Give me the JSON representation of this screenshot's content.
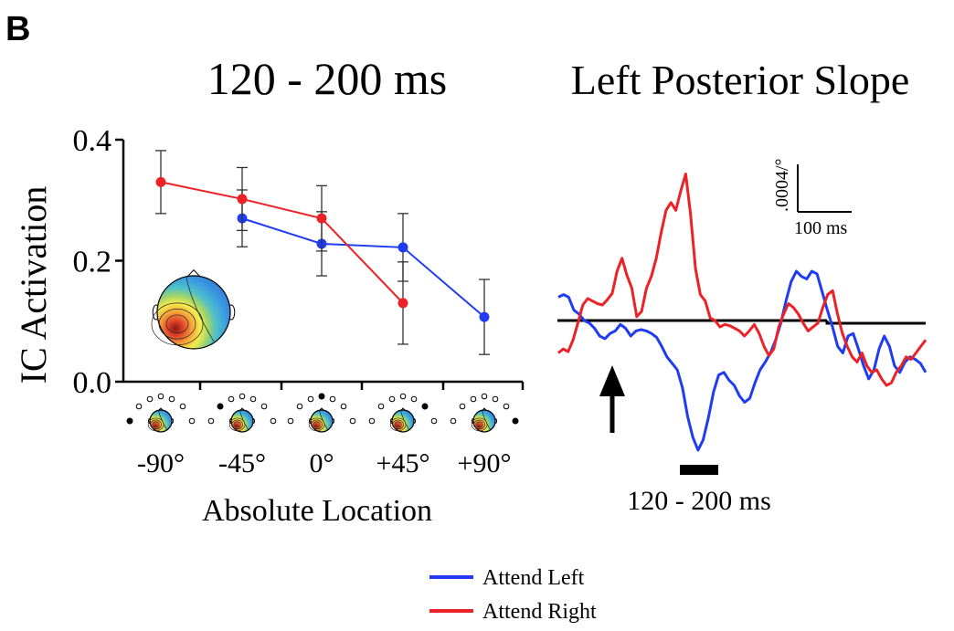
{
  "panel_letter": "B",
  "legend": {
    "items": [
      {
        "label": "Attend Left",
        "color": "#1f3cf2"
      },
      {
        "label": "Attend Right",
        "color": "#ec2226"
      }
    ]
  },
  "chart_data": [
    {
      "type": "line",
      "title": "120 - 200 ms",
      "xlabel": "Absolute Location",
      "ylabel": "IC Activation",
      "categories": [
        "-90°",
        "-45°",
        "0°",
        "+45°",
        "+90°"
      ],
      "yticks": [
        "0.0",
        "0.2",
        "0.4"
      ],
      "ylim": [
        0,
        0.4
      ],
      "grid": false,
      "inset": "scalp-map",
      "series": [
        {
          "name": "Attend Left",
          "color": "#1f3cf2",
          "points": [
            [
              1,
              0.27
            ],
            [
              2,
              0.228
            ],
            [
              3,
              0.222
            ],
            [
              4,
              0.107
            ]
          ],
          "errors": [
            0.047,
            0.053,
            0.056,
            0.062
          ]
        },
        {
          "name": "Attend Right",
          "color": "#ec2226",
          "points": [
            [
              0,
              0.33
            ],
            [
              1,
              0.302
            ],
            [
              2,
              0.27
            ],
            [
              3,
              0.13
            ]
          ],
          "errors": [
            0.052,
            0.052,
            0.054,
            0.068
          ]
        }
      ]
    },
    {
      "type": "line",
      "title": "Left Posterior Slope",
      "window_label": "120 - 200 ms",
      "scale_bar": {
        "y_label": ".0004/°",
        "x_label": "100 ms"
      },
      "series": [
        {
          "name": "Attend Left",
          "color": "#1f3cf2",
          "y": [
            0.18,
            0.2,
            0.18,
            0.08,
            0.05,
            0.0,
            -0.02,
            -0.06,
            -0.12,
            -0.14,
            -0.1,
            -0.08,
            -0.03,
            -0.06,
            -0.12,
            -0.08,
            -0.07,
            -0.08,
            -0.1,
            -0.13,
            -0.2,
            -0.28,
            -0.33,
            -0.38,
            -0.52,
            -0.74,
            -0.9,
            -1.0,
            -0.92,
            -0.75,
            -0.55,
            -0.42,
            -0.4,
            -0.46,
            -0.5,
            -0.58,
            -0.63,
            -0.6,
            -0.48,
            -0.38,
            -0.32,
            -0.25,
            -0.15,
            -0.02,
            0.15,
            0.3,
            0.38,
            0.34,
            0.32,
            0.38,
            0.36,
            0.22,
            0.08,
            -0.05,
            -0.2,
            -0.25,
            -0.12,
            -0.1,
            -0.22,
            -0.35,
            -0.45,
            -0.38,
            -0.22,
            -0.12,
            -0.2,
            -0.35,
            -0.4,
            -0.32,
            -0.28,
            -0.3,
            -0.33,
            -0.4
          ]
        },
        {
          "name": "Attend Right",
          "color": "#ec2226",
          "y": [
            -0.25,
            -0.22,
            -0.24,
            -0.15,
            -0.02,
            0.12,
            0.17,
            0.15,
            0.13,
            0.12,
            0.16,
            0.21,
            0.38,
            0.48,
            0.35,
            0.25,
            0.03,
            0.07,
            0.25,
            0.34,
            0.48,
            0.68,
            0.85,
            0.91,
            0.85,
            1.0,
            1.13,
            0.82,
            0.4,
            0.2,
            0.15,
            0.02,
            0.0,
            -0.05,
            -0.03,
            -0.04,
            -0.06,
            -0.08,
            -0.12,
            -0.08,
            -0.03,
            -0.1,
            -0.2,
            -0.27,
            -0.22,
            -0.05,
            0.05,
            0.13,
            0.1,
            0.05,
            -0.02,
            -0.08,
            -0.05,
            -0.02,
            0.1,
            0.2,
            0.23,
            0.05,
            -0.1,
            -0.2,
            -0.28,
            -0.32,
            -0.25,
            -0.35,
            -0.4,
            -0.38,
            -0.45,
            -0.5,
            -0.48,
            -0.4,
            -0.35,
            -0.28,
            -0.3,
            -0.25,
            -0.2,
            -0.15
          ]
        }
      ]
    }
  ]
}
